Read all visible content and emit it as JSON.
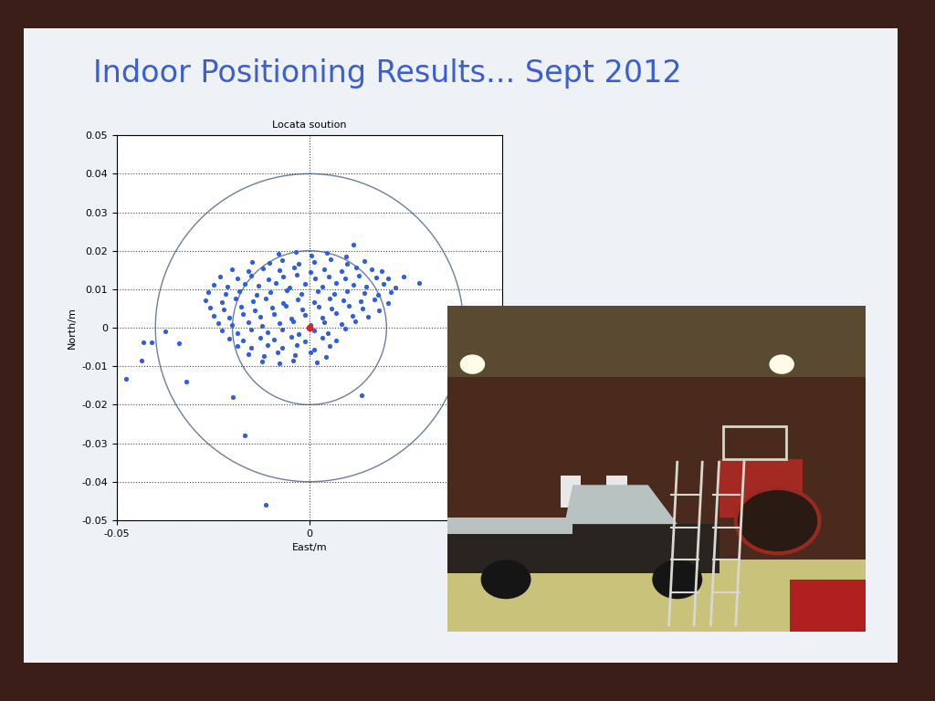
{
  "slide_title": "Indoor Positioning Results... Sept 2012",
  "chart_data": {
    "type": "scatter",
    "title": "Locata soution",
    "x_label": "East/m",
    "y_label": "North/m",
    "xlim": [
      -0.05,
      0.05
    ],
    "xticks": [
      -0.05,
      0
    ],
    "ylim": [
      -0.05,
      0.05
    ],
    "yticks": [
      -0.05,
      -0.04,
      -0.03,
      -0.02,
      -0.01,
      0,
      0.01,
      0.02,
      0.03,
      0.04,
      0.05
    ],
    "grid": true,
    "circle_radii": [
      0.02,
      0.04
    ],
    "series": [
      {
        "color": "#2f5fe0",
        "marker": "o",
        "x": [
          -0.008,
          -0.0035,
          0.0005,
          0.0045,
          0.0095,
          -0.015,
          -0.0105,
          -0.0072,
          -0.0028,
          0.0012,
          0.0055,
          0.0098,
          0.0143,
          -0.0202,
          -0.0158,
          -0.0121,
          -0.0079,
          -0.0041,
          0.0003,
          0.0038,
          0.0084,
          0.0122,
          0.0161,
          0.0188,
          -0.0231,
          -0.0188,
          -0.0152,
          -0.0107,
          -0.0068,
          -0.0033,
          0.0014,
          0.0049,
          0.0093,
          0.0128,
          0.0172,
          0.0204,
          -0.0248,
          -0.0213,
          -0.0168,
          -0.0133,
          -0.0088,
          -0.0051,
          -0.0012,
          0.0034,
          0.0068,
          0.0113,
          0.0148,
          0.0192,
          0.0223,
          -0.0262,
          -0.0219,
          -0.0183,
          -0.0138,
          -0.0102,
          -0.0058,
          -0.0022,
          0.0021,
          0.0063,
          0.0097,
          0.0142,
          0.0178,
          0.0212,
          -0.0271,
          -0.0228,
          -0.0192,
          -0.0148,
          -0.0113,
          -0.0068,
          -0.0031,
          0.0012,
          0.0052,
          0.0089,
          0.0133,
          0.0168,
          0.0203,
          -0.0258,
          -0.0223,
          -0.0178,
          -0.0142,
          -0.0098,
          -0.0062,
          -0.0018,
          0.0024,
          0.0058,
          0.0103,
          0.0138,
          0.0181,
          -0.0249,
          -0.0208,
          -0.0172,
          -0.0128,
          -0.0092,
          -0.0048,
          -0.0012,
          0.0033,
          0.0068,
          0.0112,
          0.0152,
          -0.0238,
          -0.0202,
          -0.0158,
          -0.0122,
          -0.0078,
          -0.0042,
          0.0003,
          0.0038,
          0.0082,
          0.0118,
          -0.0228,
          -0.0188,
          -0.0152,
          -0.0108,
          -0.0072,
          -0.0028,
          0.0012,
          0.0048,
          0.0092,
          -0.0208,
          -0.0172,
          -0.0128,
          -0.0092,
          -0.0048,
          -0.0012,
          0.0033,
          0.0068,
          -0.0188,
          -0.0152,
          -0.0108,
          -0.0072,
          -0.0032,
          0.0012,
          0.0052,
          -0.0158,
          -0.0118,
          -0.0082,
          -0.0038,
          0.0003,
          0.0042,
          -0.0122,
          -0.0078,
          -0.0042,
          0.0018,
          -0.0477,
          -0.0436,
          -0.0432,
          -0.041,
          -0.0375,
          -0.034,
          -0.032,
          -0.02,
          -0.0168,
          -0.0114,
          0.0284,
          0.0245,
          0.0114,
          0.0136
        ],
        "y": [
          0.0192,
          0.0198,
          0.0188,
          0.0195,
          0.0186,
          0.0172,
          0.0168,
          0.0176,
          0.0165,
          0.0171,
          0.0178,
          0.0166,
          0.0173,
          0.0152,
          0.0147,
          0.0155,
          0.0149,
          0.0156,
          0.0144,
          0.0153,
          0.0146,
          0.0157,
          0.0151,
          0.0148,
          0.0132,
          0.0128,
          0.0135,
          0.0126,
          0.0133,
          0.0137,
          0.0127,
          0.0134,
          0.0129,
          0.0136,
          0.0131,
          0.0128,
          0.0112,
          0.0107,
          0.0115,
          0.0109,
          0.0116,
          0.0104,
          0.0113,
          0.0106,
          0.0117,
          0.0111,
          0.0108,
          0.0114,
          0.0105,
          0.0092,
          0.0088,
          0.0095,
          0.0086,
          0.0093,
          0.0097,
          0.0087,
          0.0094,
          0.0089,
          0.0096,
          0.0091,
          0.0085,
          0.0093,
          0.0072,
          0.0067,
          0.0075,
          0.0069,
          0.0076,
          0.0064,
          0.0073,
          0.0066,
          0.0077,
          0.0071,
          0.0068,
          0.0074,
          0.0065,
          0.0052,
          0.0048,
          0.0055,
          0.0046,
          0.0053,
          0.0057,
          0.0047,
          0.0054,
          0.0049,
          0.0056,
          0.0051,
          0.0045,
          0.0032,
          0.0027,
          0.0035,
          0.0029,
          0.0036,
          0.0024,
          0.0033,
          0.0026,
          0.0037,
          0.0031,
          0.0028,
          0.0012,
          0.0008,
          0.0015,
          0.0006,
          0.0013,
          0.0017,
          0.0007,
          0.0014,
          0.0009,
          0.0016,
          -0.0008,
          -0.0013,
          -0.0005,
          -0.0011,
          -0.0004,
          -0.0016,
          -0.0007,
          -0.0014,
          -0.0003,
          -0.0028,
          -0.0033,
          -0.0025,
          -0.0031,
          -0.0024,
          -0.0036,
          -0.0027,
          -0.0034,
          -0.0048,
          -0.0053,
          -0.0045,
          -0.0051,
          -0.0044,
          -0.0056,
          -0.0047,
          -0.0068,
          -0.0073,
          -0.0065,
          -0.0071,
          -0.0064,
          -0.0076,
          -0.0088,
          -0.0093,
          -0.0085,
          -0.0091,
          -0.0132,
          -0.0085,
          -0.0037,
          -0.0037,
          -0.001,
          -0.004,
          -0.014,
          -0.018,
          -0.028,
          -0.046,
          0.0117,
          0.0134,
          0.0215,
          -0.0176
        ]
      },
      {
        "color": "#dd2222",
        "marker": "o",
        "x": [
          0
        ],
        "y": [
          0
        ]
      }
    ]
  }
}
